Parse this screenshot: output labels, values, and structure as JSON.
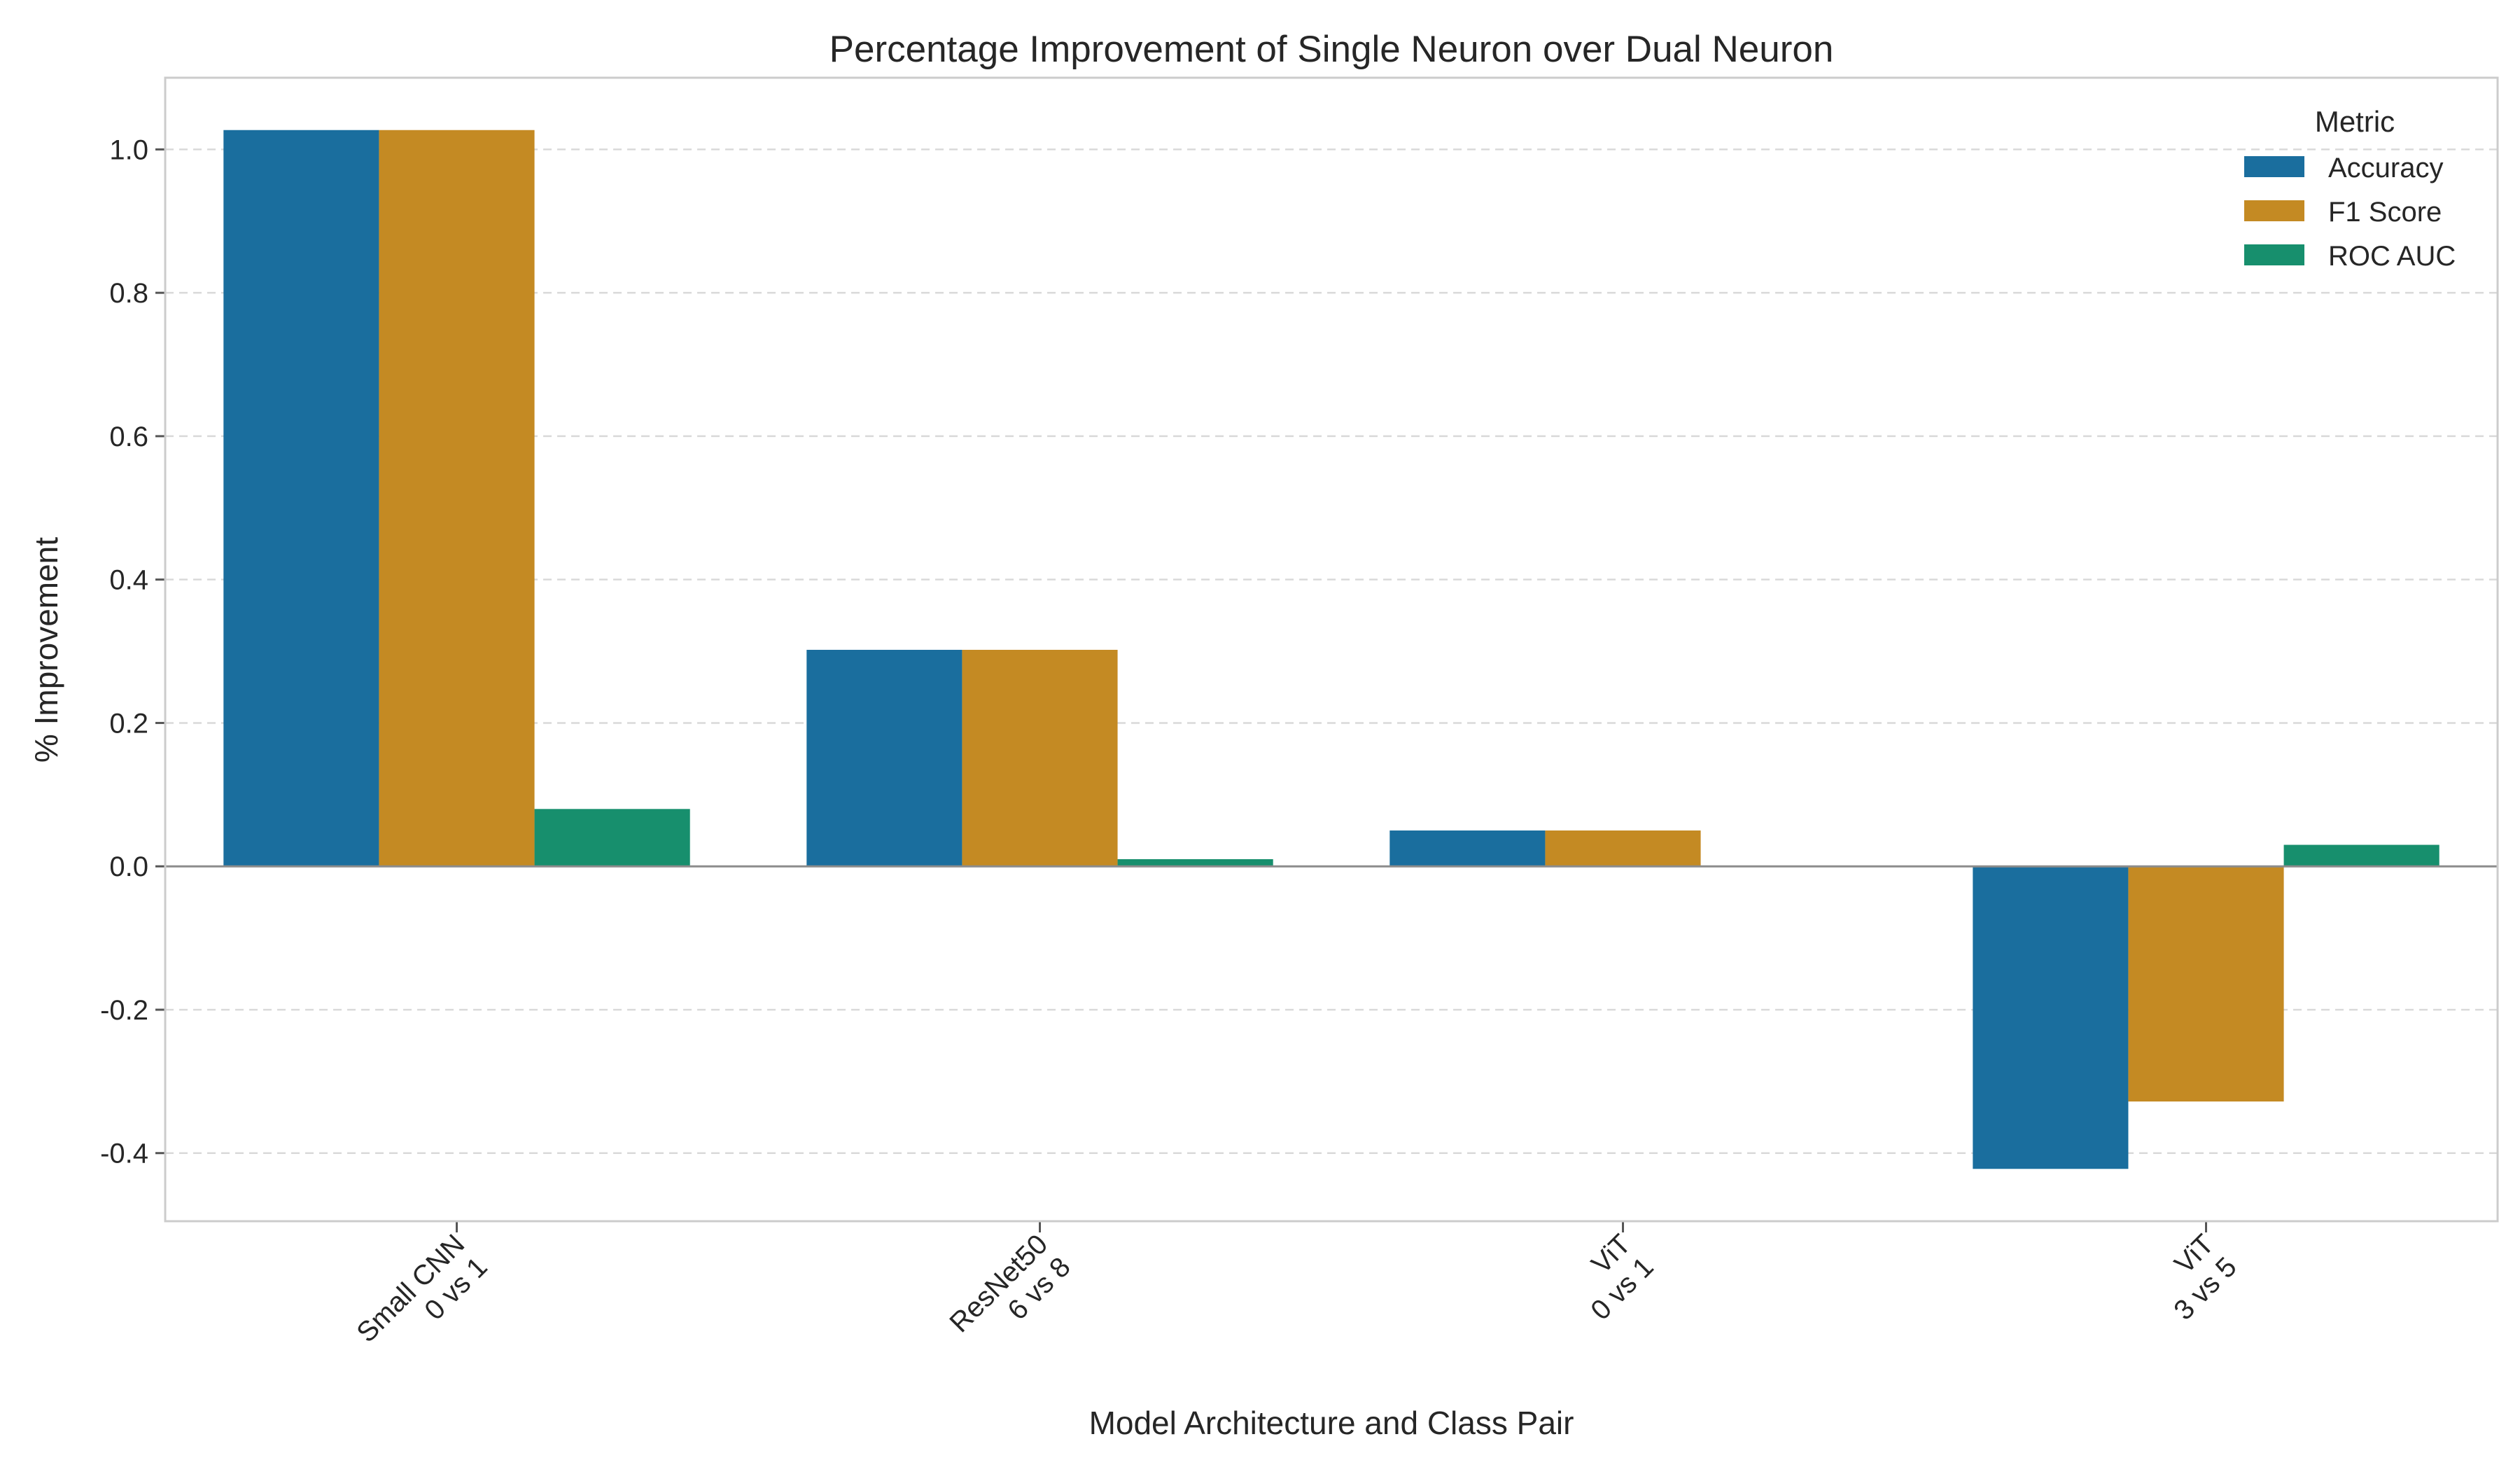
{
  "chart_data": {
    "type": "bar",
    "title": "Percentage Improvement of Single Neuron over Dual Neuron",
    "xlabel": "Model Architecture and Class Pair",
    "ylabel": "% Improvement",
    "categories": [
      [
        "Small CNN",
        "0 vs 1"
      ],
      [
        "ResNet50",
        "6 vs 8"
      ],
      [
        "ViT",
        "0 vs 1"
      ],
      [
        "ViT",
        "3 vs 5"
      ]
    ],
    "series": [
      {
        "name": "Accuracy",
        "color": "#1a6e9e",
        "values": [
          1.027,
          0.302,
          0.05,
          -0.422
        ]
      },
      {
        "name": "F1 Score",
        "color": "#c48a23",
        "values": [
          1.027,
          0.302,
          0.05,
          -0.328
        ]
      },
      {
        "name": "ROC AUC",
        "color": "#178f6d",
        "values": [
          0.08,
          0.01,
          0.0,
          0.03
        ]
      }
    ],
    "ylim": [
      -0.495,
      1.1
    ],
    "yticks": [
      "-0.4",
      "-0.2",
      "0.0",
      "0.2",
      "0.4",
      "0.6",
      "0.8",
      "1.0"
    ],
    "grid": "horizontal dashed",
    "legend": {
      "title": "Metric",
      "position": "top-right"
    },
    "zero_line": true
  }
}
